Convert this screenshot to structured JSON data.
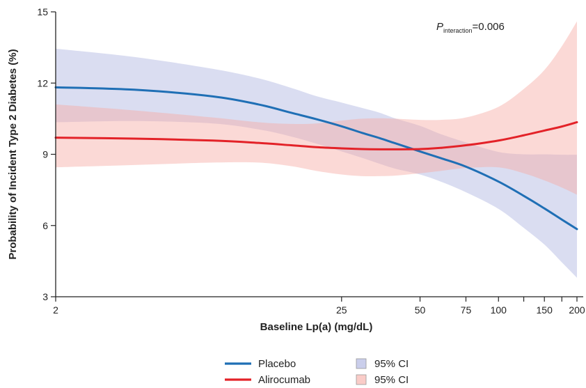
{
  "chart_data": {
    "type": "line",
    "xlabel": "Baseline Lp(a) (mg/dL)",
    "ylabel": "Probability of Incident Type 2 Diabetes (%)",
    "x_scale": "log",
    "xlim": [
      2,
      200
    ],
    "ylim": [
      3,
      15
    ],
    "x_ticks": [
      2,
      25,
      50,
      75,
      100,
      150,
      200
    ],
    "x_minor_ticks": [
      125,
      175
    ],
    "y_ticks": [
      3,
      6,
      9,
      12,
      15
    ],
    "annotation": {
      "italic_text": "P",
      "subscript": "interaction",
      "value_text": "=0.006"
    },
    "series": [
      {
        "name": "Placebo",
        "color": "#1f6fb5",
        "x": [
          2,
          4,
          8,
          12,
          16,
          20,
          25,
          30,
          35,
          40,
          50,
          60,
          75,
          100,
          125,
          150,
          175,
          200
        ],
        "y": [
          11.82,
          11.72,
          11.44,
          11.1,
          10.75,
          10.48,
          10.18,
          9.9,
          9.68,
          9.47,
          9.12,
          8.84,
          8.48,
          7.85,
          7.25,
          6.72,
          6.25,
          5.85
        ],
        "ci_lower": [
          10.35,
          10.4,
          10.3,
          10.05,
          9.75,
          9.45,
          9.12,
          8.85,
          8.6,
          8.4,
          8.15,
          7.85,
          7.4,
          6.7,
          5.9,
          5.2,
          4.45,
          3.8
        ],
        "ci_upper": [
          13.45,
          13.1,
          12.6,
          12.2,
          11.8,
          11.45,
          11.18,
          10.95,
          10.75,
          10.52,
          10.2,
          9.85,
          9.5,
          9.1,
          9.0,
          9.0,
          8.98,
          8.98
        ]
      },
      {
        "name": "Alirocumab",
        "color": "#e32228",
        "x": [
          2,
          4,
          8,
          12,
          16,
          20,
          25,
          30,
          35,
          40,
          50,
          60,
          75,
          100,
          125,
          150,
          175,
          200
        ],
        "y": [
          9.7,
          9.66,
          9.58,
          9.48,
          9.38,
          9.3,
          9.25,
          9.22,
          9.21,
          9.21,
          9.22,
          9.27,
          9.38,
          9.58,
          9.8,
          10.0,
          10.17,
          10.35
        ],
        "ci_lower": [
          8.45,
          8.55,
          8.65,
          8.65,
          8.5,
          8.3,
          8.15,
          8.08,
          8.08,
          8.1,
          8.2,
          8.3,
          8.42,
          8.45,
          8.2,
          7.9,
          7.6,
          7.3
        ],
        "ci_upper": [
          11.1,
          10.85,
          10.55,
          10.35,
          10.28,
          10.3,
          10.42,
          10.5,
          10.52,
          10.5,
          10.45,
          10.45,
          10.55,
          11.0,
          11.75,
          12.55,
          13.55,
          14.6
        ]
      }
    ],
    "bands": [
      {
        "name": "95% CI",
        "series": "Placebo",
        "color": "#a7aedd",
        "opacity": 0.42
      },
      {
        "name": "95% CI",
        "series": "Alirocumab",
        "color": "#f7aaa3",
        "opacity": 0.45
      }
    ],
    "legend": {
      "placement": "bottom",
      "line_entries": [
        "Placebo",
        "Alirocumab"
      ],
      "band_entries": [
        "95% CI",
        "95% CI"
      ]
    },
    "grid": false
  }
}
